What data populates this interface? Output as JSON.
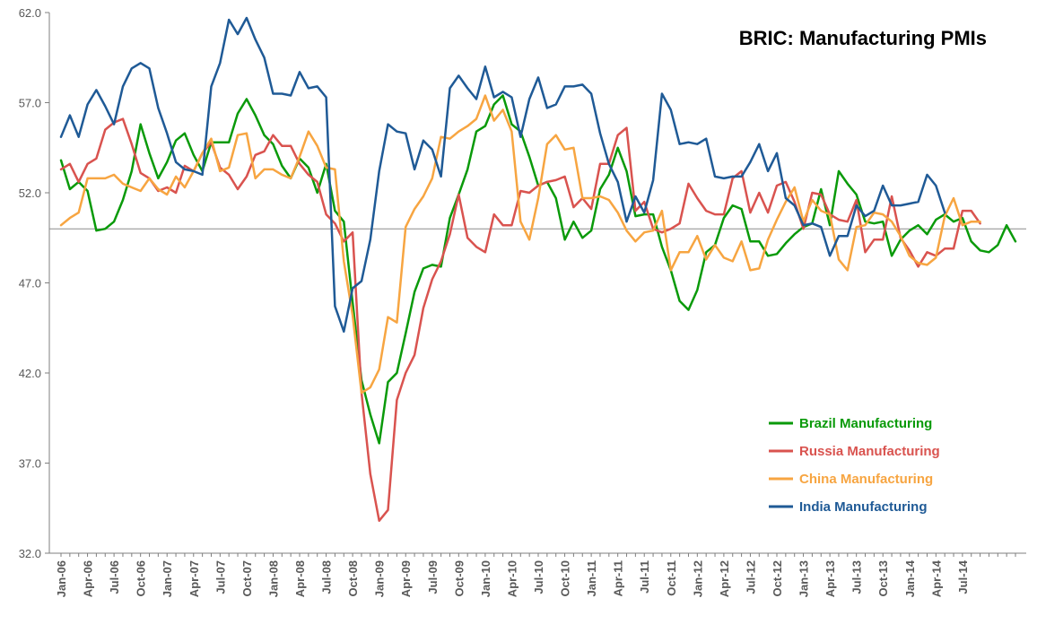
{
  "chart_data": {
    "type": "line",
    "title": "BRIC: Manufacturing PMIs",
    "xlabel": "",
    "ylabel": "",
    "ylim": [
      32.0,
      62.0
    ],
    "y_ticks": [
      "32.0",
      "37.0",
      "42.0",
      "47.0",
      "52.0",
      "57.0",
      "62.0"
    ],
    "reference_line": 50,
    "grid": false,
    "legend_position": "bottom-right",
    "x_tick_labels": [
      "Jan-06",
      "Apr-06",
      "Jul-06",
      "Oct-06",
      "Jan-07",
      "Apr-07",
      "Jul-07",
      "Oct-07",
      "Jan-08",
      "Apr-08",
      "Jul-08",
      "Oct-08",
      "Jan-09",
      "Apr-09",
      "Jul-09",
      "Oct-09",
      "Jan-10",
      "Apr-10",
      "Jul-10",
      "Oct-10",
      "Jan-11",
      "Apr-11",
      "Jul-11",
      "Oct-11",
      "Jan-12",
      "Apr-12",
      "Jul-12",
      "Oct-12",
      "Jan-13",
      "Apr-13",
      "Jul-13",
      "Oct-13",
      "Jan-14",
      "Apr-14",
      "Jul-14"
    ],
    "series": [
      {
        "name": "Brazil Manufacturing",
        "color": "#0a9a0a",
        "values": [
          53.8,
          52.2,
          52.6,
          52.1,
          49.9,
          50.0,
          50.4,
          51.6,
          53.2,
          55.8,
          54.2,
          52.8,
          53.7,
          54.9,
          55.3,
          54.1,
          53.2,
          54.8,
          54.8,
          54.8,
          56.4,
          57.2,
          56.3,
          55.2,
          54.7,
          53.5,
          52.8,
          53.9,
          53.4,
          52.0,
          53.6,
          51.0,
          50.4,
          45.9,
          41.6,
          39.7,
          38.1,
          41.5,
          42.0,
          44.2,
          46.5,
          47.8,
          48.0,
          47.9,
          50.6,
          51.9,
          53.3,
          55.4,
          55.7,
          56.9,
          57.4,
          55.8,
          55.4,
          54.0,
          52.4,
          52.6,
          51.7,
          49.4,
          50.4,
          49.5,
          49.9,
          52.2,
          53.0,
          54.5,
          53.2,
          50.7,
          50.8,
          50.8,
          49.0,
          47.7,
          46.0,
          45.5,
          46.6,
          48.7,
          49.1,
          50.6,
          51.3,
          51.1,
          49.3,
          49.3,
          48.5,
          48.6,
          49.2,
          49.7,
          50.1,
          50.3,
          52.2,
          50.2,
          53.2,
          52.5,
          51.9,
          50.4,
          50.3,
          50.4,
          48.5,
          49.4,
          49.9,
          50.2,
          49.7,
          50.5,
          50.8,
          50.4,
          50.6,
          49.3,
          48.8,
          48.7,
          49.1,
          50.2,
          49.3
        ]
      },
      {
        "name": "Russia Manufacturing",
        "color": "#d9534f",
        "values": [
          53.3,
          53.6,
          52.6,
          53.6,
          53.9,
          55.5,
          55.9,
          56.1,
          54.7,
          53.1,
          52.8,
          52.1,
          52.3,
          52.0,
          53.5,
          53.2,
          54.2,
          54.8,
          53.4,
          53.0,
          52.2,
          52.9,
          54.1,
          54.3,
          55.2,
          54.6,
          54.6,
          53.6,
          53.0,
          52.6,
          50.8,
          50.3,
          49.3,
          49.8,
          40.9,
          36.4,
          33.8,
          34.4,
          40.5,
          42.0,
          43.0,
          45.6,
          47.2,
          48.2,
          49.7,
          51.9,
          49.5,
          49.0,
          48.7,
          50.8,
          50.2,
          50.2,
          52.1,
          52.0,
          52.4,
          52.6,
          52.7,
          52.9,
          51.2,
          51.7,
          51.1,
          53.6,
          53.6,
          55.2,
          55.6,
          51.0,
          51.5,
          50.0,
          49.8,
          50.0,
          50.3,
          52.5,
          51.7,
          51.0,
          50.8,
          50.8,
          52.8,
          53.2,
          50.9,
          52.0,
          50.9,
          52.4,
          52.6,
          51.5,
          50.0,
          52.0,
          51.9,
          50.8,
          50.5,
          50.4,
          51.6,
          48.7,
          49.4,
          49.4,
          51.8,
          49.5,
          48.8,
          47.9,
          48.7,
          48.5,
          48.9,
          48.9,
          51.0,
          51.0,
          50.3
        ]
      },
      {
        "name": "China Manufacturing",
        "color": "#f7a541",
        "values": [
          50.2,
          50.6,
          50.9,
          52.8,
          52.8,
          52.8,
          53.0,
          52.5,
          52.3,
          52.1,
          52.8,
          52.2,
          51.9,
          52.9,
          52.3,
          53.2,
          54.2,
          55.0,
          53.2,
          53.4,
          55.2,
          55.3,
          52.8,
          53.3,
          53.3,
          53.0,
          52.8,
          54.0,
          55.4,
          54.6,
          53.4,
          53.3,
          48.2,
          45.2,
          40.9,
          41.2,
          42.2,
          45.1,
          44.8,
          50.1,
          51.1,
          51.8,
          52.8,
          55.1,
          55.0,
          55.4,
          55.7,
          56.1,
          57.4,
          56.0,
          56.6,
          55.4,
          50.4,
          49.4,
          51.7,
          54.7,
          55.2,
          54.4,
          54.5,
          51.7,
          51.7,
          51.8,
          51.6,
          50.9,
          49.9,
          49.3,
          49.8,
          49.9,
          51.0,
          47.7,
          48.7,
          48.7,
          49.6,
          48.3,
          49.1,
          48.4,
          48.2,
          49.3,
          47.7,
          47.8,
          49.4,
          50.5,
          51.5,
          52.3,
          50.4,
          51.6,
          51.0,
          50.8,
          48.3,
          47.7,
          50.1,
          50.2,
          50.9,
          50.8,
          50.4,
          49.6,
          48.5,
          48.1,
          48.0,
          48.4,
          50.7,
          51.7,
          50.2,
          50.4,
          50.4
        ]
      },
      {
        "name": "India Manufacturing",
        "color": "#1f5a96",
        "values": [
          55.1,
          56.3,
          55.1,
          56.9,
          57.7,
          56.8,
          55.8,
          57.9,
          58.9,
          59.2,
          58.9,
          56.7,
          55.3,
          53.7,
          53.3,
          53.2,
          53.0,
          57.9,
          59.2,
          61.6,
          60.8,
          61.7,
          60.5,
          59.5,
          57.5,
          57.5,
          57.4,
          58.7,
          57.8,
          57.9,
          57.3,
          45.7,
          44.3,
          46.7,
          47.1,
          49.4,
          53.2,
          55.8,
          55.4,
          55.3,
          53.3,
          54.9,
          54.4,
          52.9,
          57.8,
          58.5,
          57.8,
          57.2,
          59.0,
          57.3,
          57.6,
          57.3,
          55.1,
          57.2,
          58.4,
          56.7,
          56.9,
          57.9,
          57.9,
          58.0,
          57.5,
          55.3,
          53.6,
          52.6,
          50.4,
          51.8,
          50.9,
          52.7,
          57.5,
          56.6,
          54.7,
          54.8,
          54.7,
          55.0,
          52.9,
          52.8,
          52.9,
          52.9,
          53.7,
          54.7,
          53.2,
          54.2,
          51.7,
          51.3,
          50.2,
          50.3,
          50.1,
          48.5,
          49.6,
          49.6,
          51.3,
          50.7,
          51.0,
          52.4,
          51.3,
          51.3,
          51.4,
          51.5,
          53.0,
          52.4,
          50.9
        ]
      }
    ]
  }
}
